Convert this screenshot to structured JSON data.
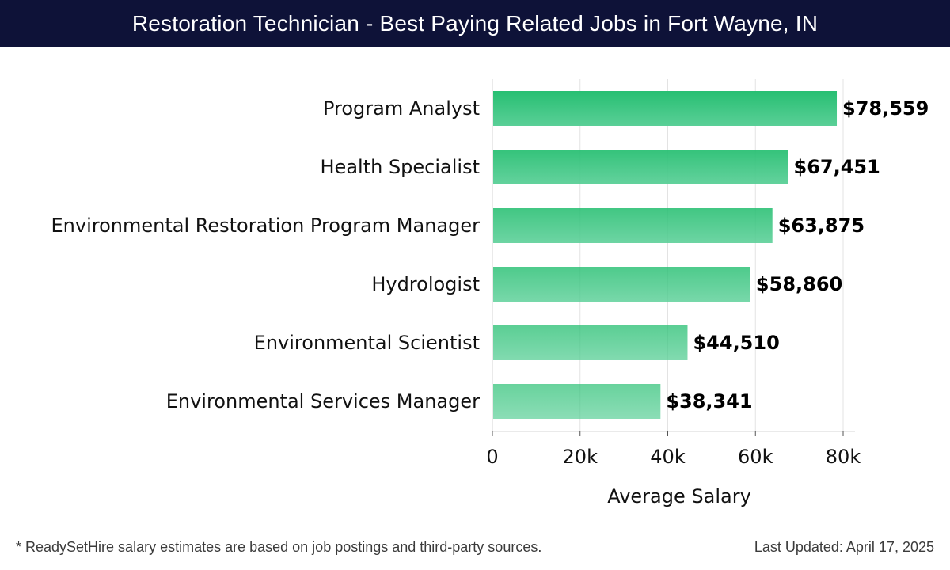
{
  "header": {
    "title": "Restoration Technician - Best Paying Related Jobs in Fort Wayne, IN"
  },
  "footer": {
    "note": "* ReadySetHire salary estimates are based on job postings and third-party sources.",
    "updated": "Last Updated: April 17, 2025"
  },
  "colors": {
    "header_bg": "#0e1238",
    "bar_top": "#27bf72",
    "bar_bottom": "#5acf97",
    "grid": "#e3e3e3"
  },
  "chart_data": {
    "type": "bar",
    "orientation": "horizontal",
    "title": "Restoration Technician - Best Paying Related Jobs in Fort Wayne, IN",
    "xlabel": "Average Salary",
    "ylabel": "",
    "xlim": [
      0,
      80000
    ],
    "xticks": [
      0,
      20000,
      40000,
      60000,
      80000
    ],
    "xtick_labels": [
      "0",
      "20k",
      "40k",
      "60k",
      "80k"
    ],
    "grid": "vertical",
    "categories": [
      "Program Analyst",
      "Health Specialist",
      "Environmental Restoration Program Manager",
      "Hydrologist",
      "Environmental Scientist",
      "Environmental Services Manager"
    ],
    "values": [
      78559,
      67451,
      63875,
      58860,
      44510,
      38341
    ],
    "value_labels": [
      "$78,559",
      "$67,451",
      "$63,875",
      "$58,860",
      "$44,510",
      "$38,341"
    ]
  }
}
